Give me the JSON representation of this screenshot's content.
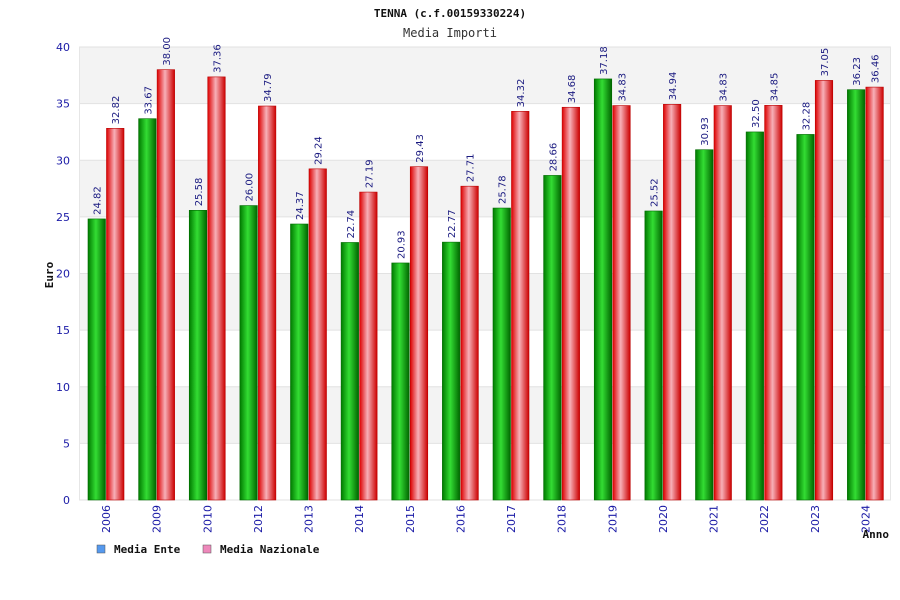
{
  "chart_data": {
    "type": "bar",
    "title": "TENNA (c.f.00159330224)",
    "subtitle": "Media Importi",
    "xlabel": "Anno",
    "ylabel": "Euro",
    "ylim": [
      0,
      40
    ],
    "yticks": [
      0,
      5,
      10,
      15,
      20,
      25,
      30,
      35,
      40
    ],
    "grid": true,
    "legend_position": "bottom-left",
    "categories": [
      "2006",
      "2009",
      "2010",
      "2012",
      "2013",
      "2014",
      "2015",
      "2016",
      "2017",
      "2018",
      "2019",
      "2020",
      "2021",
      "2022",
      "2023",
      "2024"
    ],
    "series": [
      {
        "name": "Media Ente",
        "color": "#00aa00",
        "legend_color": "#5599ee",
        "values": [
          24.82,
          33.67,
          25.58,
          26.0,
          24.37,
          22.74,
          20.93,
          22.77,
          25.78,
          28.66,
          37.18,
          25.52,
          30.93,
          32.5,
          32.28,
          36.23
        ]
      },
      {
        "name": "Media Nazionale",
        "color": "#ee1111",
        "legend_color": "#ee88bb",
        "values": [
          32.82,
          38.0,
          37.36,
          34.79,
          29.24,
          27.19,
          29.43,
          27.71,
          34.32,
          34.68,
          34.83,
          34.94,
          34.83,
          34.85,
          37.05,
          36.46
        ]
      }
    ]
  }
}
